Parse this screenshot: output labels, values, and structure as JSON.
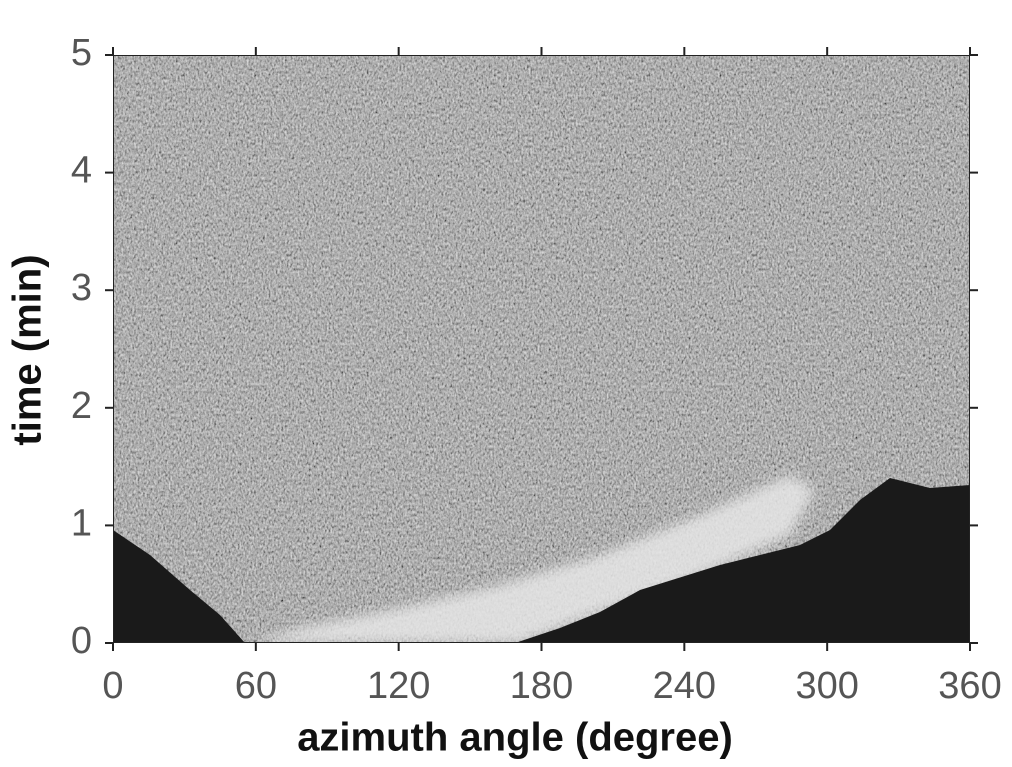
{
  "chart_data": {
    "type": "image",
    "xlabel": "azimuth angle (degree)",
    "ylabel": "time (min)",
    "xlim": [
      0,
      360
    ],
    "xticks": [
      0,
      60,
      120,
      180,
      240,
      300,
      360
    ],
    "ylim": [
      0,
      5
    ],
    "yticks": [
      0,
      1,
      2,
      3,
      4,
      5
    ]
  }
}
